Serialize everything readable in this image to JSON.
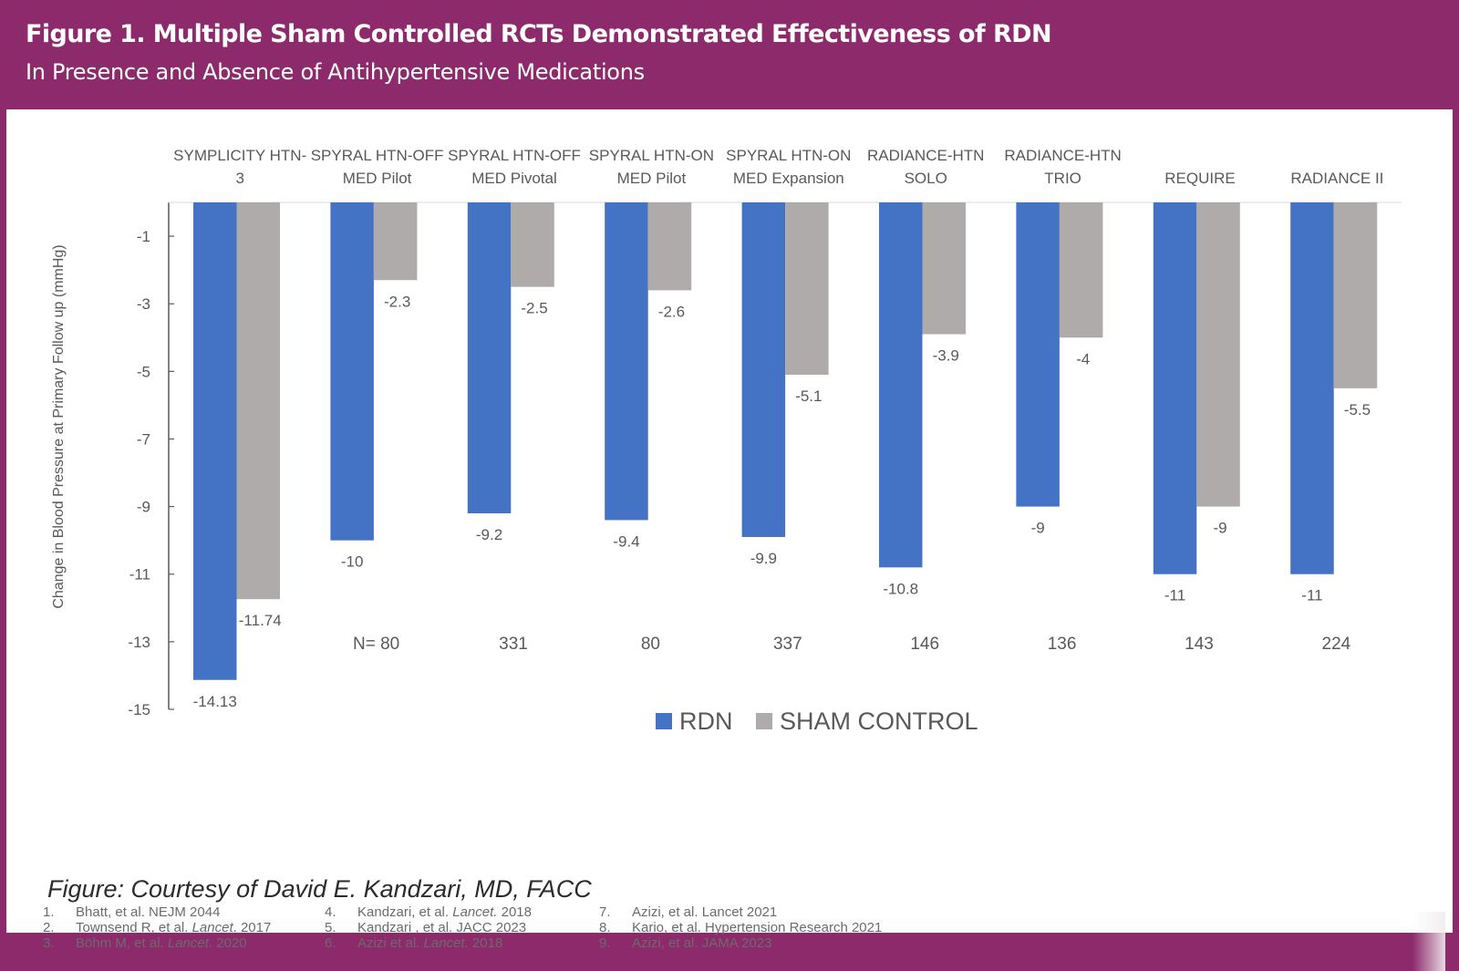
{
  "header": {
    "title": "Figure 1. Multiple Sham Controlled RCTs Demonstrated Effectiveness of RDN",
    "subtitle": "In Presence and Absence of Antihypertensive Medications"
  },
  "colors": {
    "frame": "#8c2a6c",
    "rdn": "#4472c4",
    "sham": "#afabab",
    "axis": "#595959"
  },
  "chart_data": {
    "type": "bar",
    "title": "Multiple Sham Controlled RCTs Demonstrated Effectiveness of RDN",
    "xlabel": "",
    "ylabel": "Change in Blood Pressure at Primary Follow up (mmHg)",
    "ylim": [
      -15,
      0
    ],
    "yticks": [
      -1,
      -3,
      -5,
      -7,
      -9,
      -11,
      -13,
      -15
    ],
    "grid": false,
    "legend_position": "bottom-center",
    "categories": [
      [
        "SYMPLICITY HTN-",
        "3"
      ],
      [
        "SPYRAL HTN-OFF",
        "MED Pilot"
      ],
      [
        "SPYRAL HTN-OFF",
        "MED Pivotal"
      ],
      [
        "SPYRAL HTN-ON",
        "MED Pilot"
      ],
      [
        "SPYRAL HTN-ON",
        "MED Expansion"
      ],
      [
        "RADIANCE-HTN",
        "SOLO"
      ],
      [
        "RADIANCE-HTN",
        "TRIO"
      ],
      [
        "",
        "REQUIRE"
      ],
      [
        "",
        "RADIANCE II"
      ]
    ],
    "series": [
      {
        "name": "RDN",
        "values": [
          -14.13,
          -10,
          -9.2,
          -9.4,
          -9.9,
          -10.8,
          -9,
          -11,
          -11
        ],
        "labels": [
          "-14.13",
          "-10",
          "-9.2",
          "-9.4",
          "-9.9",
          "-10.8",
          "-9",
          "-11",
          "-11"
        ]
      },
      {
        "name": "SHAM CONTROL",
        "values": [
          -11.74,
          -2.3,
          -2.5,
          -2.6,
          -5.1,
          -3.9,
          -4,
          -9,
          -5.5
        ],
        "labels": [
          "-11.74",
          "-2.3",
          "-2.5",
          "-2.6",
          "-5.1",
          "-3.9",
          "-4",
          "-9",
          "-5.5"
        ]
      }
    ],
    "sample_sizes": [
      "",
      "N= 80",
      "331",
      "80",
      "337",
      "146",
      "136",
      "143",
      "224"
    ]
  },
  "references": [
    [
      {
        "num": "1.",
        "parts": [
          {
            "t": "Bhatt, et al. NEJM 2044",
            "i": false
          }
        ]
      },
      {
        "num": "2.",
        "parts": [
          {
            "t": "Townsend R, et al. ",
            "i": false
          },
          {
            "t": "Lancet",
            "i": true
          },
          {
            "t": ". 2017",
            "i": false
          }
        ]
      },
      {
        "num": "3.",
        "parts": [
          {
            "t": "Böhm M, et al. ",
            "i": false
          },
          {
            "t": "Lancet",
            "i": true
          },
          {
            "t": ". 2020",
            "i": false
          }
        ]
      }
    ],
    [
      {
        "num": "4.",
        "parts": [
          {
            "t": "Kandzari, et al. ",
            "i": false
          },
          {
            "t": "Lancet.",
            "i": true
          },
          {
            "t": " 2018",
            "i": false
          }
        ]
      },
      {
        "num": "5.",
        "parts": [
          {
            "t": "Kandzari , et al. JACC 2023",
            "i": false
          }
        ]
      },
      {
        "num": "6.",
        "parts": [
          {
            "t": "Azizi et al. ",
            "i": false
          },
          {
            "t": "Lancet.",
            "i": true
          },
          {
            "t": " 2018",
            "i": false
          }
        ]
      }
    ],
    [
      {
        "num": "7.",
        "parts": [
          {
            "t": "Azizi, et al. Lancet 2021",
            "i": false
          }
        ]
      },
      {
        "num": "8.",
        "parts": [
          {
            "t": "Kario, et al. Hypertension Research 2021",
            "i": false
          }
        ]
      },
      {
        "num": "9.",
        "parts": [
          {
            "t": "Azizi, et al. JAMA 2023",
            "i": false
          }
        ]
      }
    ]
  ],
  "credit": "Figure: Courtesy of David E. Kandzari, MD, FACC"
}
